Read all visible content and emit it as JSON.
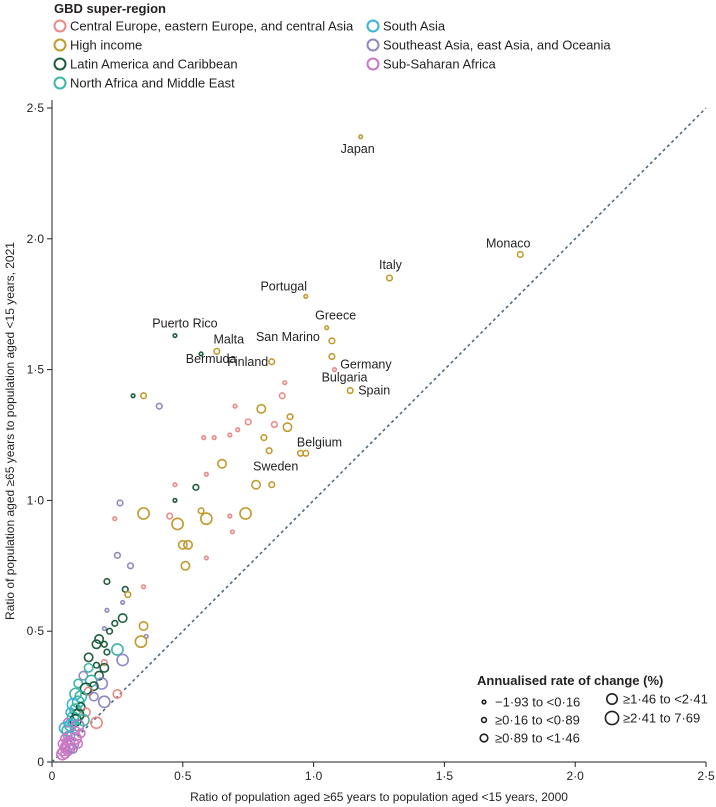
{
  "chart_data": {
    "type": "scatter",
    "title": "",
    "xlabel": "Ratio of population aged ≥65 years to population aged <15 years, 2000",
    "ylabel": "Ratio of population aged ≥65 years to population aged <15 years, 2021",
    "xlim": [
      0,
      2.5
    ],
    "ylim": [
      0,
      2.5
    ],
    "x_ticks": [
      "0",
      "0·5",
      "1·0",
      "1·5",
      "2·0",
      "2·5"
    ],
    "y_ticks": [
      "0",
      "0·5",
      "1·0",
      "1·5",
      "2·0",
      "2·5"
    ],
    "reference_line": "y = x (dashed)",
    "legend_title": "GBD super-region",
    "series": [
      {
        "key": "ceca",
        "name": "Central Europe, eastern Europe, and central Asia",
        "color": "#ea8a86"
      },
      {
        "key": "hi",
        "name": "High income",
        "color": "#c49a2e"
      },
      {
        "key": "lac",
        "name": "Latin America and Caribbean",
        "color": "#1c5e3c"
      },
      {
        "key": "name",
        "name": "North Africa and Middle East",
        "color": "#3db7a8"
      },
      {
        "key": "sa",
        "name": "South Asia",
        "color": "#3bb4d8"
      },
      {
        "key": "seao",
        "name": "Southeast Asia, east Asia, and Oceania",
        "color": "#9088c4"
      },
      {
        "key": "ssa",
        "name": "Sub-Saharan Africa",
        "color": "#cc77c6"
      }
    ],
    "size_legend_title": "Annualised rate of change (%)",
    "size_classes": [
      {
        "label": "−1·93 to <0·16"
      },
      {
        "label": "≥0·16 to <0·89"
      },
      {
        "label": "≥0·89 to <1·46"
      },
      {
        "label": "≥1·46 to <2·41"
      },
      {
        "label": "≥2·41 to 7·69"
      }
    ],
    "points": [
      {
        "x": 1.18,
        "y": 2.39,
        "region": "hi",
        "size": 0,
        "label": "Japan"
      },
      {
        "x": 1.79,
        "y": 1.94,
        "region": "hi",
        "size": 1,
        "label": "Monaco"
      },
      {
        "x": 1.29,
        "y": 1.85,
        "region": "hi",
        "size": 1,
        "label": "Italy"
      },
      {
        "x": 0.97,
        "y": 1.78,
        "region": "hi",
        "size": 0,
        "label": "Portugal"
      },
      {
        "x": 1.05,
        "y": 1.66,
        "region": "hi",
        "size": 0,
        "label": "Greece"
      },
      {
        "x": 1.07,
        "y": 1.61,
        "region": "hi",
        "size": 1,
        "label": "San Marino"
      },
      {
        "x": 1.07,
        "y": 1.55,
        "region": "hi",
        "size": 1,
        "label": "Germany"
      },
      {
        "x": 0.84,
        "y": 1.53,
        "region": "hi",
        "size": 1,
        "label": "Finland"
      },
      {
        "x": 1.08,
        "y": 1.5,
        "region": "ceca",
        "size": 0,
        "label": "Bulgaria"
      },
      {
        "x": 1.14,
        "y": 1.42,
        "region": "hi",
        "size": 1,
        "label": "Spain"
      },
      {
        "x": 0.63,
        "y": 1.57,
        "region": "hi",
        "size": 1,
        "label": "Malta"
      },
      {
        "x": 0.47,
        "y": 1.63,
        "region": "lac",
        "size": 0,
        "label": "Puerto Rico"
      },
      {
        "x": 0.57,
        "y": 1.56,
        "region": "lac",
        "size": 0,
        "label": "Bermuda"
      },
      {
        "x": 0.95,
        "y": 1.18,
        "region": "hi",
        "size": 1,
        "label": "Belgium"
      },
      {
        "x": 0.97,
        "y": 1.18,
        "region": "hi",
        "size": 1,
        "label": "Sweden"
      },
      {
        "x": 0.31,
        "y": 1.4,
        "region": "lac",
        "size": 0
      },
      {
        "x": 0.35,
        "y": 1.4,
        "region": "hi",
        "size": 1
      },
      {
        "x": 0.41,
        "y": 1.36,
        "region": "seao",
        "size": 1
      },
      {
        "x": 0.89,
        "y": 1.45,
        "region": "ceca",
        "size": 0
      },
      {
        "x": 0.88,
        "y": 1.4,
        "region": "ceca",
        "size": 1
      },
      {
        "x": 0.8,
        "y": 1.35,
        "region": "hi",
        "size": 2
      },
      {
        "x": 0.75,
        "y": 1.3,
        "region": "ceca",
        "size": 1
      },
      {
        "x": 0.85,
        "y": 1.29,
        "region": "ceca",
        "size": 1
      },
      {
        "x": 0.91,
        "y": 1.32,
        "region": "hi",
        "size": 1
      },
      {
        "x": 0.9,
        "y": 1.28,
        "region": "hi",
        "size": 2
      },
      {
        "x": 0.7,
        "y": 1.36,
        "region": "ceca",
        "size": 0
      },
      {
        "x": 0.68,
        "y": 1.25,
        "region": "ceca",
        "size": 0
      },
      {
        "x": 0.71,
        "y": 1.27,
        "region": "ceca",
        "size": 0
      },
      {
        "x": 0.58,
        "y": 1.24,
        "region": "ceca",
        "size": 0
      },
      {
        "x": 0.62,
        "y": 1.24,
        "region": "ceca",
        "size": 0
      },
      {
        "x": 0.81,
        "y": 1.24,
        "region": "hi",
        "size": 1
      },
      {
        "x": 0.83,
        "y": 1.19,
        "region": "hi",
        "size": 1
      },
      {
        "x": 0.65,
        "y": 1.14,
        "region": "hi",
        "size": 2
      },
      {
        "x": 0.59,
        "y": 1.1,
        "region": "ceca",
        "size": 0
      },
      {
        "x": 0.47,
        "y": 1.06,
        "region": "ceca",
        "size": 0
      },
      {
        "x": 0.55,
        "y": 1.05,
        "region": "lac",
        "size": 1
      },
      {
        "x": 0.78,
        "y": 1.06,
        "region": "hi",
        "size": 2
      },
      {
        "x": 0.84,
        "y": 1.06,
        "region": "hi",
        "size": 1
      },
      {
        "x": 0.47,
        "y": 1.0,
        "region": "lac",
        "size": 0
      },
      {
        "x": 0.26,
        "y": 0.99,
        "region": "seao",
        "size": 1
      },
      {
        "x": 0.35,
        "y": 0.95,
        "region": "hi",
        "size": 3
      },
      {
        "x": 0.24,
        "y": 0.93,
        "region": "ceca",
        "size": 0
      },
      {
        "x": 0.45,
        "y": 0.94,
        "region": "ceca",
        "size": 1
      },
      {
        "x": 0.57,
        "y": 0.96,
        "region": "hi",
        "size": 1
      },
      {
        "x": 0.48,
        "y": 0.91,
        "region": "hi",
        "size": 3
      },
      {
        "x": 0.59,
        "y": 0.93,
        "region": "hi",
        "size": 3
      },
      {
        "x": 0.68,
        "y": 0.94,
        "region": "ceca",
        "size": 0
      },
      {
        "x": 0.74,
        "y": 0.95,
        "region": "hi",
        "size": 3
      },
      {
        "x": 0.69,
        "y": 0.88,
        "region": "ceca",
        "size": 0
      },
      {
        "x": 0.5,
        "y": 0.83,
        "region": "hi",
        "size": 2
      },
      {
        "x": 0.52,
        "y": 0.83,
        "region": "hi",
        "size": 2
      },
      {
        "x": 0.51,
        "y": 0.75,
        "region": "hi",
        "size": 2
      },
      {
        "x": 0.59,
        "y": 0.78,
        "region": "ceca",
        "size": 0
      },
      {
        "x": 0.25,
        "y": 0.79,
        "region": "seao",
        "size": 1
      },
      {
        "x": 0.3,
        "y": 0.75,
        "region": "seao",
        "size": 1
      },
      {
        "x": 0.21,
        "y": 0.69,
        "region": "lac",
        "size": 1
      },
      {
        "x": 0.35,
        "y": 0.67,
        "region": "ceca",
        "size": 0
      },
      {
        "x": 0.28,
        "y": 0.66,
        "region": "lac",
        "size": 1
      },
      {
        "x": 0.29,
        "y": 0.64,
        "region": "hi",
        "size": 1
      },
      {
        "x": 0.27,
        "y": 0.61,
        "region": "seao",
        "size": 0
      },
      {
        "x": 0.21,
        "y": 0.58,
        "region": "seao",
        "size": 0
      },
      {
        "x": 0.27,
        "y": 0.55,
        "region": "lac",
        "size": 2
      },
      {
        "x": 0.24,
        "y": 0.53,
        "region": "lac",
        "size": 1
      },
      {
        "x": 0.2,
        "y": 0.51,
        "region": "seao",
        "size": 0
      },
      {
        "x": 0.22,
        "y": 0.5,
        "region": "lac",
        "size": 1
      },
      {
        "x": 0.35,
        "y": 0.52,
        "region": "hi",
        "size": 2
      },
      {
        "x": 0.36,
        "y": 0.48,
        "region": "seao",
        "size": 0
      },
      {
        "x": 0.18,
        "y": 0.47,
        "region": "lac",
        "size": 2
      },
      {
        "x": 0.17,
        "y": 0.45,
        "region": "lac",
        "size": 2
      },
      {
        "x": 0.2,
        "y": 0.45,
        "region": "lac",
        "size": 1
      },
      {
        "x": 0.34,
        "y": 0.46,
        "region": "hi",
        "size": 3
      },
      {
        "x": 0.25,
        "y": 0.43,
        "region": "name",
        "size": 3
      },
      {
        "x": 0.21,
        "y": 0.42,
        "region": "lac",
        "size": 1
      },
      {
        "x": 0.14,
        "y": 0.4,
        "region": "lac",
        "size": 2
      },
      {
        "x": 0.27,
        "y": 0.39,
        "region": "seao",
        "size": 3
      },
      {
        "x": 0.2,
        "y": 0.38,
        "region": "ceca",
        "size": 1
      },
      {
        "x": 0.17,
        "y": 0.37,
        "region": "lac",
        "size": 1
      },
      {
        "x": 0.2,
        "y": 0.36,
        "region": "lac",
        "size": 2
      },
      {
        "x": 0.14,
        "y": 0.36,
        "region": "name",
        "size": 2
      },
      {
        "x": 0.18,
        "y": 0.33,
        "region": "lac",
        "size": 2
      },
      {
        "x": 0.12,
        "y": 0.33,
        "region": "seao",
        "size": 2
      },
      {
        "x": 0.15,
        "y": 0.31,
        "region": "name",
        "size": 3
      },
      {
        "x": 0.1,
        "y": 0.3,
        "region": "name",
        "size": 2
      },
      {
        "x": 0.19,
        "y": 0.3,
        "region": "seao",
        "size": 3
      },
      {
        "x": 0.16,
        "y": 0.29,
        "region": "lac",
        "size": 2
      },
      {
        "x": 0.13,
        "y": 0.28,
        "region": "lac",
        "size": 3
      },
      {
        "x": 0.14,
        "y": 0.27,
        "region": "ceca",
        "size": 2
      },
      {
        "x": 0.09,
        "y": 0.26,
        "region": "name",
        "size": 3
      },
      {
        "x": 0.25,
        "y": 0.26,
        "region": "ceca",
        "size": 2
      },
      {
        "x": 0.11,
        "y": 0.25,
        "region": "name",
        "size": 3
      },
      {
        "x": 0.16,
        "y": 0.25,
        "region": "seao",
        "size": 2
      },
      {
        "x": 0.1,
        "y": 0.23,
        "region": "name",
        "size": 3
      },
      {
        "x": 0.2,
        "y": 0.23,
        "region": "seao",
        "size": 3
      },
      {
        "x": 0.08,
        "y": 0.22,
        "region": "sa",
        "size": 3
      },
      {
        "x": 0.11,
        "y": 0.21,
        "region": "lac",
        "size": 2
      },
      {
        "x": 0.09,
        "y": 0.2,
        "region": "name",
        "size": 3
      },
      {
        "x": 0.07,
        "y": 0.19,
        "region": "sa",
        "size": 2
      },
      {
        "x": 0.13,
        "y": 0.19,
        "region": "ceca",
        "size": 2
      },
      {
        "x": 0.1,
        "y": 0.18,
        "region": "lac",
        "size": 3
      },
      {
        "x": 0.08,
        "y": 0.17,
        "region": "name",
        "size": 3
      },
      {
        "x": 0.09,
        "y": 0.16,
        "region": "lac",
        "size": 3
      },
      {
        "x": 0.12,
        "y": 0.16,
        "region": "name",
        "size": 3
      },
      {
        "x": 0.06,
        "y": 0.15,
        "region": "ssa",
        "size": 2
      },
      {
        "x": 0.08,
        "y": 0.15,
        "region": "name",
        "size": 2
      },
      {
        "x": 0.17,
        "y": 0.15,
        "region": "ceca",
        "size": 3
      },
      {
        "x": 0.07,
        "y": 0.14,
        "region": "sa",
        "size": 3
      },
      {
        "x": 0.1,
        "y": 0.14,
        "region": "seao",
        "size": 3
      },
      {
        "x": 0.05,
        "y": 0.13,
        "region": "sa",
        "size": 3
      },
      {
        "x": 0.06,
        "y": 0.12,
        "region": "name",
        "size": 3
      },
      {
        "x": 0.09,
        "y": 0.12,
        "region": "ssa",
        "size": 2
      },
      {
        "x": 0.11,
        "y": 0.11,
        "region": "ssa",
        "size": 2
      },
      {
        "x": 0.06,
        "y": 0.1,
        "region": "ssa",
        "size": 2
      },
      {
        "x": 0.07,
        "y": 0.1,
        "region": "sa",
        "size": 2
      },
      {
        "x": 0.09,
        "y": 0.09,
        "region": "ssa",
        "size": 3
      },
      {
        "x": 0.05,
        "y": 0.09,
        "region": "ssa",
        "size": 2
      },
      {
        "x": 0.06,
        "y": 0.08,
        "region": "ssa",
        "size": 2
      },
      {
        "x": 0.08,
        "y": 0.07,
        "region": "ssa",
        "size": 3
      },
      {
        "x": 0.1,
        "y": 0.07,
        "region": "ssa",
        "size": 2
      },
      {
        "x": 0.04,
        "y": 0.07,
        "region": "ssa",
        "size": 2
      },
      {
        "x": 0.05,
        "y": 0.06,
        "region": "ssa",
        "size": 2
      },
      {
        "x": 0.06,
        "y": 0.06,
        "region": "ssa",
        "size": 3
      },
      {
        "x": 0.07,
        "y": 0.05,
        "region": "ssa",
        "size": 2
      },
      {
        "x": 0.05,
        "y": 0.05,
        "region": "ssa",
        "size": 2
      },
      {
        "x": 0.04,
        "y": 0.04,
        "region": "ssa",
        "size": 2
      },
      {
        "x": 0.06,
        "y": 0.04,
        "region": "ssa",
        "size": 2
      },
      {
        "x": 0.04,
        "y": 0.03,
        "region": "ssa",
        "size": 3
      },
      {
        "x": 0.05,
        "y": 0.03,
        "region": "ssa",
        "size": 2
      },
      {
        "x": 0.08,
        "y": 0.05,
        "region": "seao",
        "size": 2
      },
      {
        "x": 0.07,
        "y": 0.08,
        "region": "ssa",
        "size": 2
      }
    ]
  }
}
